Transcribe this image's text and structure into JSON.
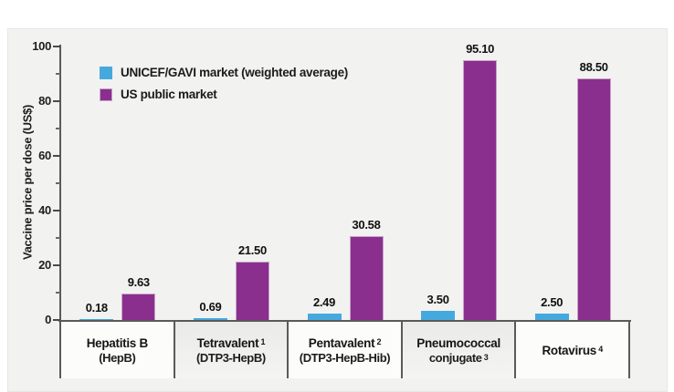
{
  "chart_data": {
    "type": "bar",
    "title": "",
    "ylabel": "Vaccine price per dose (US$)",
    "xlabel": "",
    "ylim": [
      0,
      100
    ],
    "yticks_major": [
      0,
      20,
      40,
      60,
      80,
      100
    ],
    "yticks_minor": [
      10,
      30,
      50,
      70,
      90
    ],
    "grid": false,
    "legend_position": "top-left",
    "categories": [
      {
        "line1": "Hepatitis B",
        "line1_sup": "",
        "line2": "(HepB)",
        "line2_sup": "",
        "shaded": false
      },
      {
        "line1": "Tetravalent",
        "line1_sup": "1",
        "line2": "(DTP3-HepB)",
        "line2_sup": "",
        "shaded": true
      },
      {
        "line1": "Pentavalent",
        "line1_sup": "2",
        "line2": "(DTP3-HepB-Hib)",
        "line2_sup": "",
        "shaded": false
      },
      {
        "line1": "Pneumococcal",
        "line1_sup": "",
        "line2": "conjugate",
        "line2_sup": "3",
        "shaded": true
      },
      {
        "line1": "Rotavirus",
        "line1_sup": "4",
        "line2": "",
        "line2_sup": "",
        "shaded": false
      }
    ],
    "series": [
      {
        "name": "UNICEF/GAVI market (weighted average)",
        "color": "#45a9de",
        "values": [
          0.18,
          0.69,
          2.49,
          3.5,
          2.5
        ],
        "labels": [
          "0.18",
          "0.69",
          "2.49",
          "3.50",
          "2.50"
        ]
      },
      {
        "name": "US public market",
        "color": "#8a2f8d",
        "values": [
          9.63,
          21.5,
          30.58,
          95.1,
          88.5
        ],
        "labels": [
          "9.63",
          "21.50",
          "30.58",
          "95.10",
          "88.50"
        ]
      }
    ]
  }
}
